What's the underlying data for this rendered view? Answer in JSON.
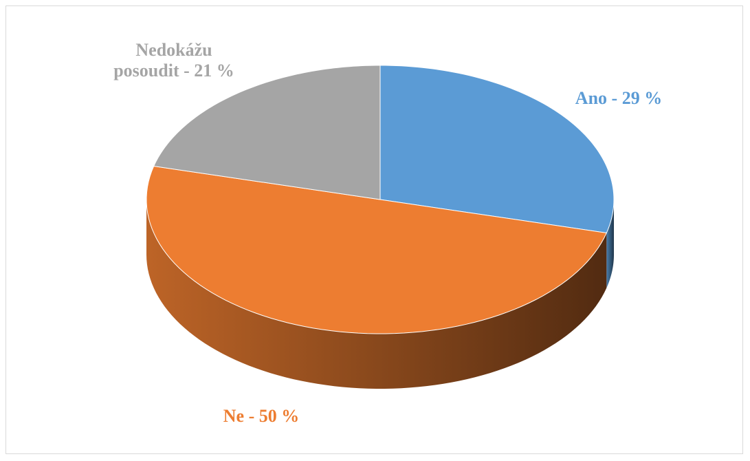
{
  "chart_data": {
    "type": "pie",
    "values": [
      29,
      50,
      21
    ],
    "value_labels": [
      "Ano - 29 %",
      "Ne - 50 %",
      "Nedokážu posoudit - 21 %"
    ],
    "colors": [
      "#5b9bd5",
      "#ed7d31",
      "#a5a5a5"
    ]
  }
}
